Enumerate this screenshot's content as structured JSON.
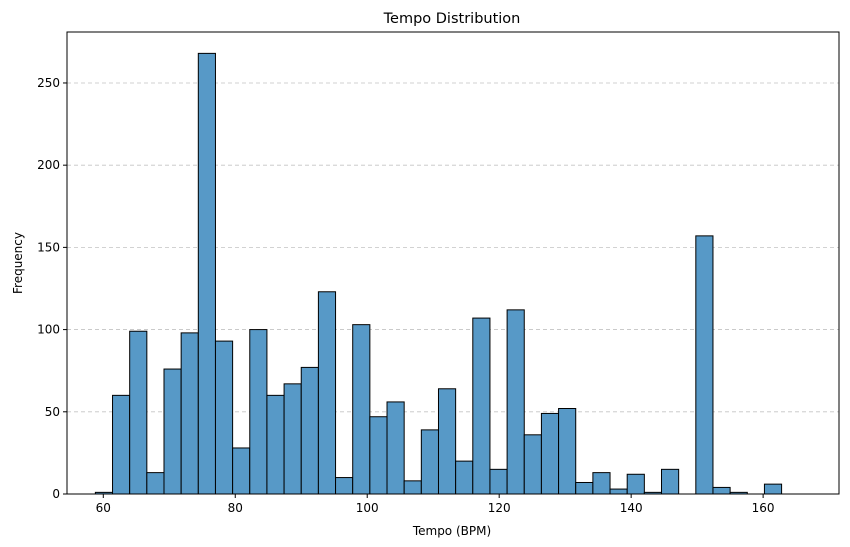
{
  "chart_data": {
    "type": "bar",
    "title": "Tempo Distribution",
    "xlabel": "Tempo (BPM)",
    "ylabel": "Frequency",
    "xlim": [
      54.5,
      171.5
    ],
    "ylim": [
      0,
      281
    ],
    "xticks": [
      60,
      80,
      100,
      120,
      140,
      160
    ],
    "yticks": [
      0,
      50,
      100,
      150,
      200,
      250
    ],
    "grid": "y-dashed",
    "bar_color": "#5799c7",
    "bar_edge_color": "#000000",
    "bins": [
      {
        "start": 58.8,
        "end": 61.4,
        "count": 1
      },
      {
        "start": 61.4,
        "end": 64.0,
        "count": 60
      },
      {
        "start": 64.0,
        "end": 66.6,
        "count": 99
      },
      {
        "start": 66.6,
        "end": 69.2,
        "count": 13
      },
      {
        "start": 69.2,
        "end": 71.8,
        "count": 76
      },
      {
        "start": 71.8,
        "end": 74.4,
        "count": 98
      },
      {
        "start": 74.4,
        "end": 77.0,
        "count": 268
      },
      {
        "start": 77.0,
        "end": 79.6,
        "count": 93
      },
      {
        "start": 79.6,
        "end": 82.2,
        "count": 28
      },
      {
        "start": 82.2,
        "end": 84.8,
        "count": 100
      },
      {
        "start": 84.8,
        "end": 87.4,
        "count": 60
      },
      {
        "start": 87.4,
        "end": 90.0,
        "count": 67
      },
      {
        "start": 90.0,
        "end": 92.6,
        "count": 77
      },
      {
        "start": 92.6,
        "end": 95.2,
        "count": 123
      },
      {
        "start": 95.2,
        "end": 97.8,
        "count": 10
      },
      {
        "start": 97.8,
        "end": 100.4,
        "count": 103
      },
      {
        "start": 100.4,
        "end": 103.0,
        "count": 47
      },
      {
        "start": 103.0,
        "end": 105.6,
        "count": 56
      },
      {
        "start": 105.6,
        "end": 108.2,
        "count": 8
      },
      {
        "start": 108.2,
        "end": 110.8,
        "count": 39
      },
      {
        "start": 110.8,
        "end": 113.4,
        "count": 64
      },
      {
        "start": 113.4,
        "end": 116.0,
        "count": 20
      },
      {
        "start": 116.0,
        "end": 118.6,
        "count": 107
      },
      {
        "start": 118.6,
        "end": 121.2,
        "count": 15
      },
      {
        "start": 121.2,
        "end": 123.8,
        "count": 112
      },
      {
        "start": 123.8,
        "end": 126.4,
        "count": 36
      },
      {
        "start": 126.4,
        "end": 129.0,
        "count": 49
      },
      {
        "start": 129.0,
        "end": 131.6,
        "count": 52
      },
      {
        "start": 131.6,
        "end": 134.2,
        "count": 7
      },
      {
        "start": 134.2,
        "end": 136.8,
        "count": 13
      },
      {
        "start": 136.8,
        "end": 139.4,
        "count": 3
      },
      {
        "start": 139.4,
        "end": 142.0,
        "count": 12
      },
      {
        "start": 142.0,
        "end": 144.6,
        "count": 1
      },
      {
        "start": 144.6,
        "end": 147.2,
        "count": 15
      },
      {
        "start": 147.2,
        "end": 149.8,
        "count": 0
      },
      {
        "start": 149.8,
        "end": 152.4,
        "count": 157
      },
      {
        "start": 152.4,
        "end": 155.0,
        "count": 4
      },
      {
        "start": 155.0,
        "end": 157.6,
        "count": 1
      },
      {
        "start": 157.6,
        "end": 160.2,
        "count": 0
      },
      {
        "start": 160.2,
        "end": 162.8,
        "count": 6
      }
    ]
  }
}
